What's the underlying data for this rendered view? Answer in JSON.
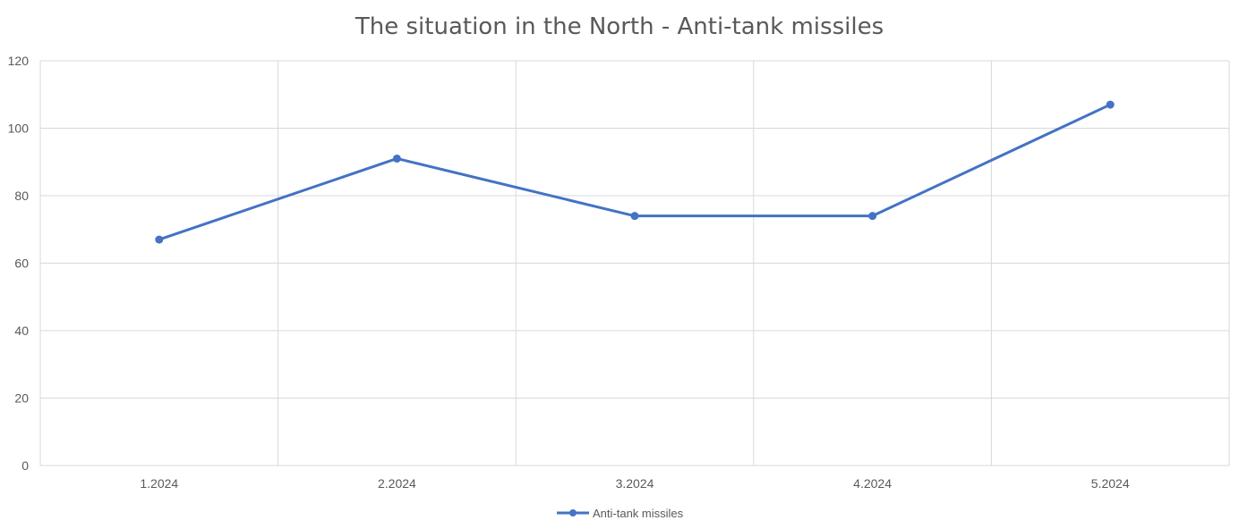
{
  "chart_data": {
    "type": "line",
    "title": "The situation in the North - Anti-tank missiles",
    "categories": [
      "1.2024",
      "2.2024",
      "3.2024",
      "4.2024",
      "5.2024"
    ],
    "series": [
      {
        "name": "Anti-tank missiles",
        "values": [
          67,
          91,
          74,
          74,
          107
        ],
        "color": "#4472c4"
      }
    ],
    "ylim": [
      0,
      120
    ],
    "yticks": [
      0,
      20,
      40,
      60,
      80,
      100,
      120
    ],
    "grid": true,
    "legend": "bottom",
    "colors": {
      "line": "#4472c4",
      "grid": "#d9d9d9",
      "text": "#595959"
    }
  }
}
